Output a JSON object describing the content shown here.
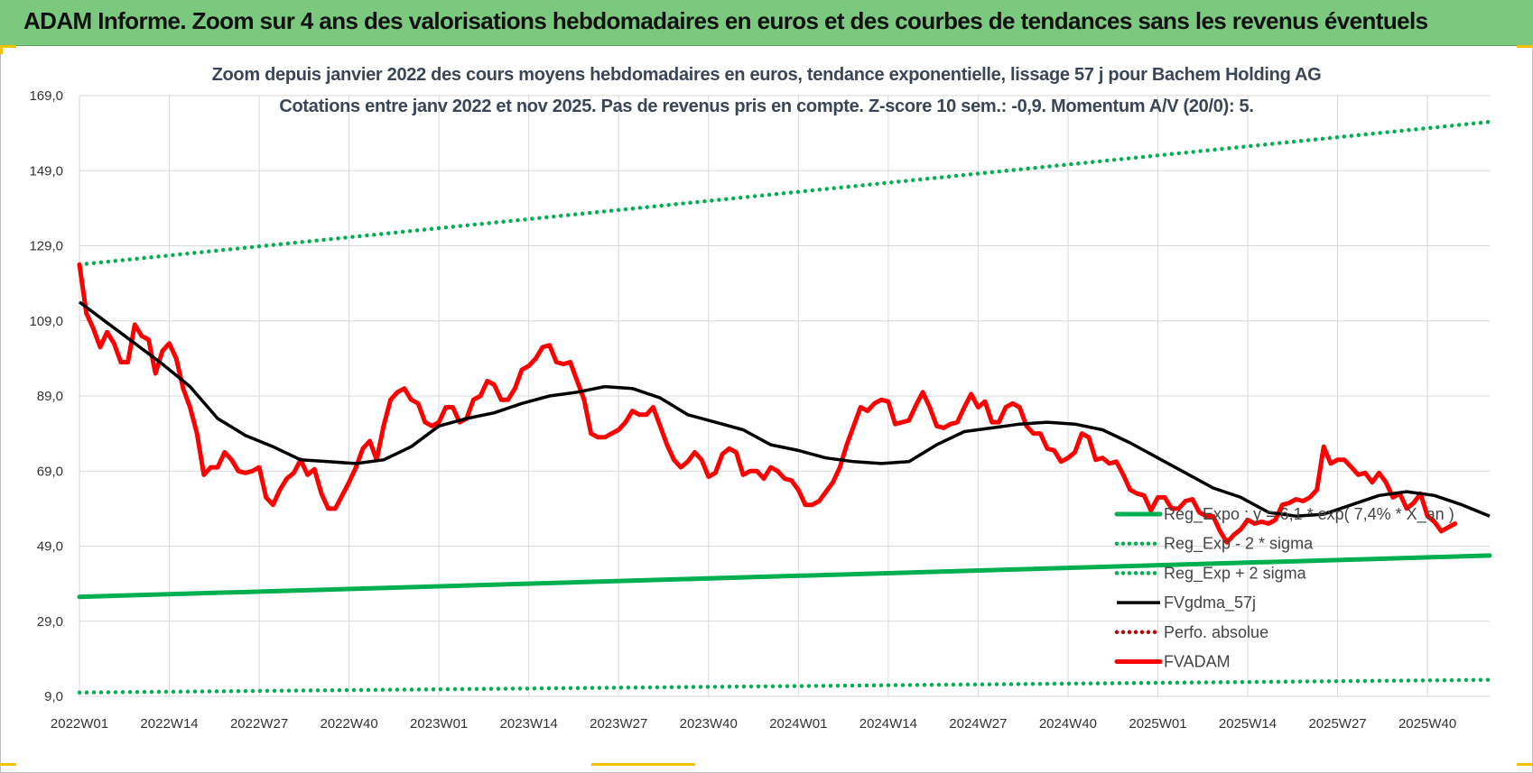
{
  "banner": {
    "title": "ADAM Informe. Zoom sur 4 ans des valorisations hebdomadaires en euros et des courbes de tendances sans les revenus éventuels"
  },
  "colors": {
    "banner_bg": "#7ac97e",
    "regression": "#00b050",
    "fvgdma": "#000000",
    "fvadam": "#ff0000",
    "perfo": "#c00000",
    "grid": "#d9d9d9",
    "title_text": "#3a4658"
  },
  "chart_data": {
    "type": "line",
    "title": "Zoom depuis janvier 2022 des cours moyens hebdomadaires en euros, tendance exponentielle, lissage 57 j pour Bachem Holding AG",
    "subtitle": "Cotations entre janv 2022 et nov 2025. Pas de revenus pris en compte. Z-score 10 sem.: -0,9. Momentum A/V (20/0): 5.",
    "xlabel": "",
    "ylabel": "",
    "ylim": [
      9.0,
      169.0
    ],
    "yticks": [
      "169,0",
      "149,0",
      "129,0",
      "109,0",
      "89,0",
      "69,0",
      "49,0",
      "29,0",
      "9,0"
    ],
    "ytick_values": [
      169,
      149,
      129,
      109,
      89,
      69,
      49,
      29,
      9
    ],
    "x_week_count": 205,
    "xticks": [
      "2022W01",
      "2022W14",
      "2022W27",
      "2022W40",
      "2023W01",
      "2023W14",
      "2023W27",
      "2023W40",
      "2024W01",
      "2024W14",
      "2024W27",
      "2024W40",
      "2025W01",
      "2025W14",
      "2025W27",
      "2025W40"
    ],
    "xtick_indices": [
      0,
      13,
      26,
      39,
      52,
      65,
      78,
      91,
      104,
      117,
      130,
      143,
      156,
      169,
      182,
      195
    ],
    "grid": true,
    "legend_position": "bottom-right",
    "legend": [
      "Reg_Expo : y = 6,1 * exp( 7,4% *  X_an )",
      "Reg_Exp - 2 * sigma",
      "Reg_Exp + 2 sigma",
      "FVgdma_57j",
      "Perfo. absolue",
      "FVADAM"
    ],
    "series": [
      {
        "name": "Reg_Expo : y = 6,1 * exp( 7,4% *  X_an )",
        "style": "solid-thick",
        "color": "#00b050",
        "points": [
          [
            0,
            35.5
          ],
          [
            204,
            46.5
          ]
        ]
      },
      {
        "name": "Reg_Exp - 2 * sigma",
        "style": "dotted",
        "color": "#00b050",
        "points": [
          [
            0,
            10.0
          ],
          [
            204,
            13.4
          ]
        ]
      },
      {
        "name": "Reg_Exp + 2 sigma",
        "style": "dotted",
        "color": "#00b050",
        "points": [
          [
            0,
            124.0
          ],
          [
            204,
            162.0
          ]
        ]
      },
      {
        "name": "FVgdma_57j",
        "style": "solid",
        "color": "#000000",
        "points": [
          [
            0,
            114.0
          ],
          [
            4,
            108.5
          ],
          [
            8,
            103.0
          ],
          [
            12,
            97.5
          ],
          [
            16,
            91.5
          ],
          [
            20,
            83.0
          ],
          [
            24,
            78.5
          ],
          [
            28,
            75.5
          ],
          [
            32,
            72.0
          ],
          [
            36,
            71.5
          ],
          [
            40,
            71.0
          ],
          [
            44,
            72.0
          ],
          [
            48,
            75.5
          ],
          [
            52,
            81.0
          ],
          [
            56,
            83.0
          ],
          [
            60,
            84.5
          ],
          [
            64,
            87.0
          ],
          [
            68,
            89.0
          ],
          [
            72,
            90.0
          ],
          [
            76,
            91.5
          ],
          [
            80,
            91.0
          ],
          [
            84,
            88.5
          ],
          [
            88,
            84.0
          ],
          [
            92,
            82.0
          ],
          [
            96,
            80.0
          ],
          [
            100,
            76.0
          ],
          [
            104,
            74.5
          ],
          [
            108,
            72.5
          ],
          [
            112,
            71.5
          ],
          [
            116,
            71.0
          ],
          [
            120,
            71.5
          ],
          [
            124,
            76.0
          ],
          [
            128,
            79.5
          ],
          [
            132,
            80.5
          ],
          [
            136,
            81.5
          ],
          [
            140,
            82.0
          ],
          [
            144,
            81.5
          ],
          [
            148,
            80.0
          ],
          [
            152,
            76.5
          ],
          [
            156,
            72.5
          ],
          [
            160,
            68.5
          ],
          [
            164,
            64.5
          ],
          [
            168,
            62.0
          ],
          [
            172,
            58.0
          ],
          [
            176,
            57.0
          ],
          [
            180,
            57.5
          ],
          [
            184,
            60.0
          ],
          [
            188,
            62.5
          ],
          [
            192,
            63.5
          ],
          [
            196,
            62.5
          ],
          [
            200,
            60.0
          ],
          [
            204,
            57.0
          ]
        ]
      },
      {
        "name": "Perfo. absolue",
        "style": "dotted",
        "color": "#c00000",
        "points": []
      },
      {
        "name": "FVADAM",
        "style": "solid-thick",
        "color": "#ff0000",
        "points": [
          [
            0,
            124.0
          ],
          [
            1,
            111.0
          ],
          [
            2,
            107.0
          ],
          [
            3,
            102.0
          ],
          [
            4,
            106.0
          ],
          [
            5,
            103.0
          ],
          [
            6,
            98.0
          ],
          [
            7,
            98.0
          ],
          [
            8,
            108.0
          ],
          [
            9,
            105.0
          ],
          [
            10,
            104.0
          ],
          [
            11,
            95.0
          ],
          [
            12,
            101.0
          ],
          [
            13,
            103.0
          ],
          [
            14,
            99.0
          ],
          [
            15,
            91.0
          ],
          [
            16,
            86.0
          ],
          [
            17,
            79.0
          ],
          [
            18,
            68.0
          ],
          [
            19,
            70.0
          ],
          [
            20,
            70.0
          ],
          [
            21,
            74.0
          ],
          [
            22,
            72.0
          ],
          [
            23,
            69.0
          ],
          [
            24,
            68.5
          ],
          [
            25,
            69.0
          ],
          [
            26,
            70.0
          ],
          [
            27,
            62.0
          ],
          [
            28,
            60.0
          ],
          [
            29,
            64.0
          ],
          [
            30,
            67.0
          ],
          [
            31,
            68.5
          ],
          [
            32,
            72.0
          ],
          [
            33,
            68.0
          ],
          [
            34,
            69.5
          ],
          [
            35,
            63.0
          ],
          [
            36,
            59.0
          ],
          [
            37,
            59.0
          ],
          [
            38,
            62.5
          ],
          [
            39,
            66.0
          ],
          [
            40,
            70.0
          ],
          [
            41,
            75.0
          ],
          [
            42,
            77.0
          ],
          [
            43,
            72.0
          ],
          [
            44,
            81.0
          ],
          [
            45,
            88.0
          ],
          [
            46,
            90.0
          ],
          [
            47,
            91.0
          ],
          [
            48,
            88.0
          ],
          [
            49,
            87.0
          ],
          [
            50,
            82.0
          ],
          [
            51,
            81.0
          ],
          [
            52,
            82.0
          ],
          [
            53,
            86.0
          ],
          [
            54,
            86.0
          ],
          [
            55,
            82.0
          ],
          [
            56,
            83.0
          ],
          [
            57,
            88.0
          ],
          [
            58,
            89.0
          ],
          [
            59,
            93.0
          ],
          [
            60,
            92.0
          ],
          [
            61,
            88.0
          ],
          [
            62,
            88.0
          ],
          [
            63,
            91.0
          ],
          [
            64,
            96.0
          ],
          [
            65,
            97.0
          ],
          [
            66,
            99.0
          ],
          [
            67,
            102.0
          ],
          [
            68,
            102.5
          ],
          [
            69,
            98.0
          ],
          [
            70,
            97.5
          ],
          [
            71,
            98.0
          ],
          [
            72,
            93.0
          ],
          [
            73,
            88.0
          ],
          [
            74,
            79.0
          ],
          [
            75,
            78.0
          ],
          [
            76,
            78.0
          ],
          [
            77,
            79.0
          ],
          [
            78,
            80.0
          ],
          [
            79,
            82.0
          ],
          [
            80,
            85.0
          ],
          [
            81,
            84.0
          ],
          [
            82,
            84.0
          ],
          [
            83,
            86.0
          ],
          [
            84,
            81.0
          ],
          [
            85,
            76.0
          ],
          [
            86,
            72.0
          ],
          [
            87,
            70.0
          ],
          [
            88,
            71.5
          ],
          [
            89,
            74.0
          ],
          [
            90,
            72.0
          ],
          [
            91,
            67.5
          ],
          [
            92,
            68.5
          ],
          [
            93,
            73.5
          ],
          [
            94,
            75.0
          ],
          [
            95,
            74.0
          ],
          [
            96,
            68.0
          ],
          [
            97,
            69.0
          ],
          [
            98,
            69.0
          ],
          [
            99,
            67.0
          ],
          [
            100,
            70.0
          ],
          [
            101,
            69.0
          ],
          [
            102,
            67.0
          ],
          [
            103,
            66.5
          ],
          [
            104,
            64.0
          ],
          [
            105,
            60.0
          ],
          [
            106,
            60.0
          ],
          [
            107,
            61.0
          ],
          [
            108,
            63.5
          ],
          [
            109,
            66.0
          ],
          [
            110,
            70.0
          ],
          [
            111,
            76.0
          ],
          [
            112,
            81.0
          ],
          [
            113,
            86.0
          ],
          [
            114,
            85.0
          ],
          [
            115,
            87.0
          ],
          [
            116,
            88.0
          ],
          [
            117,
            87.5
          ],
          [
            118,
            81.5
          ],
          [
            119,
            82.0
          ],
          [
            120,
            82.5
          ],
          [
            121,
            86.5
          ],
          [
            122,
            90.0
          ],
          [
            123,
            86.0
          ],
          [
            124,
            81.0
          ],
          [
            125,
            80.5
          ],
          [
            126,
            81.5
          ],
          [
            127,
            82.0
          ],
          [
            128,
            86.0
          ],
          [
            129,
            89.5
          ],
          [
            130,
            86.0
          ],
          [
            131,
            87.5
          ],
          [
            132,
            82.0
          ],
          [
            133,
            82.0
          ],
          [
            134,
            86.0
          ],
          [
            135,
            87.0
          ],
          [
            136,
            86.0
          ],
          [
            137,
            81.0
          ],
          [
            138,
            79.0
          ],
          [
            139,
            79.0
          ],
          [
            140,
            75.0
          ],
          [
            141,
            74.5
          ],
          [
            142,
            71.5
          ],
          [
            143,
            72.5
          ],
          [
            144,
            74.0
          ],
          [
            145,
            79.0
          ],
          [
            146,
            78.0
          ],
          [
            147,
            72.0
          ],
          [
            148,
            72.5
          ],
          [
            149,
            71.0
          ],
          [
            150,
            71.5
          ],
          [
            151,
            68.0
          ],
          [
            152,
            64.0
          ],
          [
            153,
            63.0
          ],
          [
            154,
            62.5
          ],
          [
            155,
            58.5
          ],
          [
            156,
            62.0
          ],
          [
            157,
            62.0
          ],
          [
            158,
            59.0
          ],
          [
            159,
            59.0
          ],
          [
            160,
            61.0
          ],
          [
            161,
            61.5
          ],
          [
            162,
            58.0
          ],
          [
            163,
            57.0
          ],
          [
            164,
            57.0
          ],
          [
            165,
            53.0
          ],
          [
            166,
            50.0
          ],
          [
            167,
            52.0
          ],
          [
            168,
            53.5
          ],
          [
            169,
            56.0
          ],
          [
            170,
            55.0
          ],
          [
            171,
            55.5
          ],
          [
            172,
            55.0
          ],
          [
            173,
            56.0
          ],
          [
            174,
            60.0
          ],
          [
            175,
            60.5
          ],
          [
            176,
            61.5
          ],
          [
            177,
            61.0
          ],
          [
            178,
            62.0
          ],
          [
            179,
            64.0
          ],
          [
            180,
            75.5
          ],
          [
            181,
            71.0
          ],
          [
            182,
            72.0
          ],
          [
            183,
            72.0
          ],
          [
            184,
            70.0
          ],
          [
            185,
            68.0
          ],
          [
            186,
            68.5
          ],
          [
            187,
            66.0
          ],
          [
            188,
            68.5
          ],
          [
            189,
            66.0
          ],
          [
            190,
            62.0
          ],
          [
            191,
            63.0
          ],
          [
            192,
            59.0
          ],
          [
            193,
            60.5
          ],
          [
            194,
            63.0
          ],
          [
            195,
            57.0
          ],
          [
            196,
            55.5
          ],
          [
            197,
            53.0
          ],
          [
            198,
            54.0
          ],
          [
            199,
            55.0
          ]
        ]
      }
    ]
  }
}
